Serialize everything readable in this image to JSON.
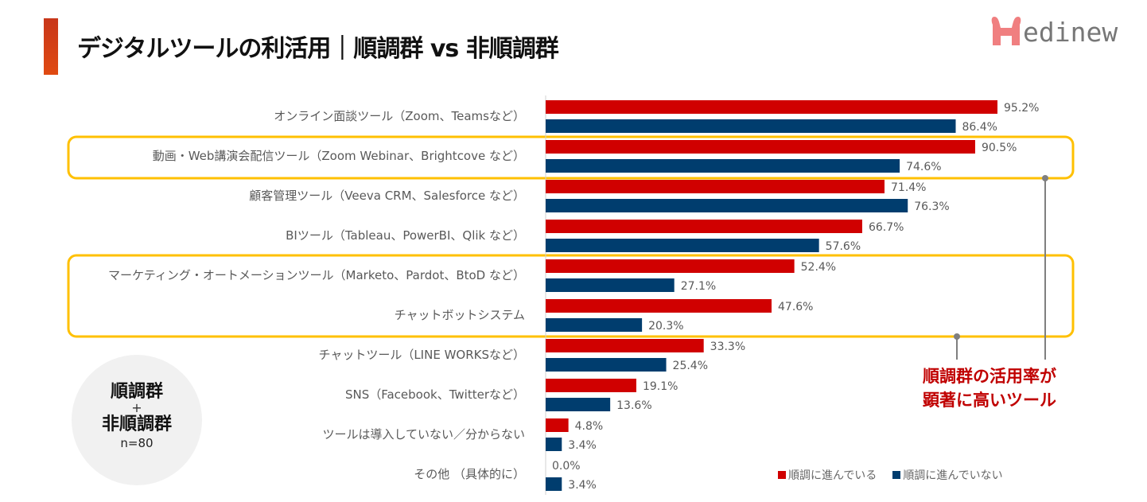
{
  "header": {
    "title": "デジタルツールの利活用｜順調群 vs 非順調群",
    "logo_text": "Medinew"
  },
  "colors": {
    "series1": "#d00000",
    "series2": "#003d6e",
    "highlight": "#ffc000",
    "callout": "#c00000",
    "accent": "#d9420f",
    "logo": "#f07f80"
  },
  "sample_badge": {
    "line1": "順調群",
    "plus": "+",
    "line2": "非順調群",
    "n": "n=80"
  },
  "callout": {
    "line1": "順調群の活用率が",
    "line2": "顕著に高いツール"
  },
  "highlighted_categories": [
    "動画・Web講演会配信ツール（Zoom Webinar、Brightcove など）",
    "マーケティング・オートメーションツール（Marketo、Pardot、BtoD など）",
    "チャットボットシステム"
  ],
  "chart_data": {
    "type": "bar",
    "orientation": "horizontal",
    "categories": [
      "オンライン面談ツール（Zoom、Teamsなど）",
      "動画・Web講演会配信ツール（Zoom Webinar、Brightcove など）",
      "顧客管理ツール（Veeva CRM、Salesforce など）",
      "BIツール（Tableau、PowerBI、Qlik など）",
      "マーケティング・オートメーションツール（Marketo、Pardot、BtoD など）",
      "チャットボットシステム",
      "チャットツール（LINE WORKSなど）",
      "SNS（Facebook、Twitterなど）",
      "ツールは導入していない／分からない",
      "その他 （具体的に）"
    ],
    "series": [
      {
        "name": "順調に進んでいる",
        "values": [
          95.2,
          90.5,
          71.4,
          66.7,
          52.4,
          47.6,
          33.3,
          19.1,
          4.8,
          0.0
        ],
        "labels": [
          "95.2%",
          "90.5%",
          "71.4%",
          "66.7%",
          "52.4%",
          "47.6%",
          "33.3%",
          "19.1%",
          "4.8%",
          "0.0%"
        ]
      },
      {
        "name": "順調に進んでいない",
        "values": [
          86.4,
          74.6,
          76.3,
          57.6,
          27.1,
          20.3,
          25.4,
          13.6,
          3.4,
          3.4
        ],
        "labels": [
          "86.4%",
          "74.6%",
          "76.3%",
          "57.6%",
          "27.1%",
          "20.3%",
          "25.4%",
          "13.6%",
          "3.4%",
          "3.4%"
        ]
      }
    ],
    "xlim": [
      0,
      100
    ],
    "grid": false,
    "legend": "bottom-right"
  }
}
